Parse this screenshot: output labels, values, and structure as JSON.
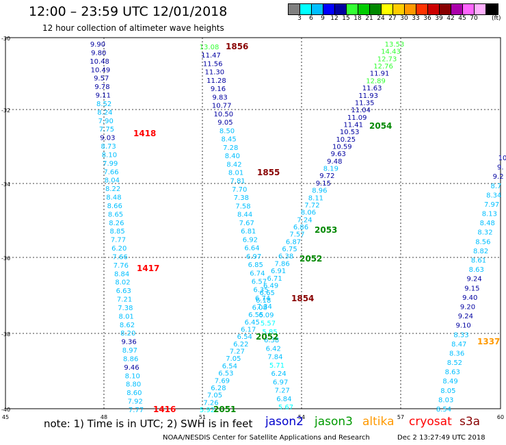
{
  "header": {
    "title": "12:00 – 23:59 UTC 12/01/2018",
    "subtitle": "12 hour collection of altimeter wave heights"
  },
  "legend": {
    "colors": [
      "#808080",
      "#00ffff",
      "#00bfff",
      "#0000ff",
      "#0000a0",
      "#33ff33",
      "#00cc00",
      "#008800",
      "#ffff00",
      "#ffcc00",
      "#ff9900",
      "#ff3300",
      "#cc0000",
      "#880000",
      "#aa00aa",
      "#ff66ff",
      "#ffb0ff",
      "#000000"
    ],
    "labels": [
      "3",
      "6",
      "9",
      "12",
      "15",
      "18",
      "21",
      "24",
      "27",
      "30",
      "33",
      "36",
      "39",
      "42",
      "45",
      "70"
    ],
    "unit": "(ft)"
  },
  "axes": {
    "lat_labels": [
      "-30",
      "-32",
      "-34",
      "-36",
      "-38",
      "-40"
    ],
    "lon_labels": [
      "45",
      "48",
      "51",
      "54",
      "57",
      "60"
    ]
  },
  "tracks": [
    {
      "name": "track-1416",
      "satellite": "jason2",
      "points": [
        {
          "v": "9.90",
          "c": "#0000a0"
        },
        {
          "v": "9.80",
          "c": "#0000a0"
        },
        {
          "v": "10.48",
          "c": "#0000a0"
        },
        {
          "v": "10.49",
          "c": "#0000a0"
        },
        {
          "v": "9.57",
          "c": "#0000a0"
        },
        {
          "v": "9.78",
          "c": "#0000a0"
        },
        {
          "v": "9.11",
          "c": "#0000a0"
        },
        {
          "v": "8.52",
          "c": "#00bfff"
        },
        {
          "v": "8.24",
          "c": "#00bfff"
        },
        {
          "v": "7.90",
          "c": "#00bfff"
        },
        {
          "v": "7.75",
          "c": "#00bfff"
        },
        {
          "v": "9.03",
          "c": "#0000a0"
        },
        {
          "v": "8.73",
          "c": "#00bfff"
        },
        {
          "v": "8.10",
          "c": "#00bfff"
        },
        {
          "v": "7.99",
          "c": "#00bfff"
        },
        {
          "v": "7.66",
          "c": "#00bfff"
        },
        {
          "v": "8.04",
          "c": "#00bfff"
        },
        {
          "v": "8.22",
          "c": "#00bfff"
        },
        {
          "v": "8.48",
          "c": "#00bfff"
        },
        {
          "v": "8.66",
          "c": "#00bfff"
        },
        {
          "v": "8.65",
          "c": "#00bfff"
        },
        {
          "v": "8.26",
          "c": "#00bfff"
        },
        {
          "v": "8.85",
          "c": "#00bfff"
        },
        {
          "v": "7.77",
          "c": "#00bfff"
        },
        {
          "v": "6.20",
          "c": "#00bfff"
        },
        {
          "v": "7.66",
          "c": "#00bfff"
        },
        {
          "v": "7.76",
          "c": "#00bfff"
        },
        {
          "v": "8.84",
          "c": "#00bfff"
        },
        {
          "v": "8.02",
          "c": "#00bfff"
        },
        {
          "v": "6.63",
          "c": "#00bfff"
        },
        {
          "v": "7.21",
          "c": "#00bfff"
        },
        {
          "v": "7.38",
          "c": "#00bfff"
        },
        {
          "v": "8.01",
          "c": "#00bfff"
        },
        {
          "v": "8.62",
          "c": "#00bfff"
        },
        {
          "v": "8.20",
          "c": "#00bfff"
        },
        {
          "v": "9.36",
          "c": "#0000a0"
        },
        {
          "v": "8.97",
          "c": "#00bfff"
        },
        {
          "v": "8.86",
          "c": "#00bfff"
        },
        {
          "v": "9.46",
          "c": "#0000a0"
        },
        {
          "v": "8.10",
          "c": "#00bfff"
        },
        {
          "v": "8.80",
          "c": "#00bfff"
        },
        {
          "v": "8.60",
          "c": "#00bfff"
        },
        {
          "v": "7.92",
          "c": "#00bfff"
        },
        {
          "v": "7.77",
          "c": "#00bfff"
        }
      ],
      "time_labels": [
        {
          "text": "1418",
          "color": "#ff0000"
        },
        {
          "text": "1417",
          "color": "#ff0000"
        },
        {
          "text": "1416",
          "color": "#ff0000"
        }
      ]
    },
    {
      "name": "track-1856",
      "satellite": "s3a",
      "points": [
        {
          "v": "13.08",
          "c": "#33ff33"
        },
        {
          "v": "11.47",
          "c": "#0000a0"
        },
        {
          "v": "11.56",
          "c": "#0000a0"
        },
        {
          "v": "11.30",
          "c": "#0000a0"
        },
        {
          "v": "11.28",
          "c": "#0000a0"
        },
        {
          "v": "9.16",
          "c": "#0000a0"
        },
        {
          "v": "9.83",
          "c": "#0000a0"
        },
        {
          "v": "10.77",
          "c": "#0000a0"
        },
        {
          "v": "10.50",
          "c": "#0000a0"
        },
        {
          "v": "9.05",
          "c": "#0000a0"
        },
        {
          "v": "8.50",
          "c": "#00bfff"
        },
        {
          "v": "8.45",
          "c": "#00bfff"
        },
        {
          "v": "7.28",
          "c": "#00bfff"
        },
        {
          "v": "8.40",
          "c": "#00bfff"
        },
        {
          "v": "8.42",
          "c": "#00bfff"
        },
        {
          "v": "8.01",
          "c": "#00bfff"
        },
        {
          "v": "7.81",
          "c": "#00bfff"
        },
        {
          "v": "7.70",
          "c": "#00bfff"
        },
        {
          "v": "7.38",
          "c": "#00bfff"
        },
        {
          "v": "7.58",
          "c": "#00bfff"
        },
        {
          "v": "8.44",
          "c": "#00bfff"
        },
        {
          "v": "7.67",
          "c": "#00bfff"
        },
        {
          "v": "6.81",
          "c": "#00bfff"
        },
        {
          "v": "6.92",
          "c": "#00bfff"
        },
        {
          "v": "6.64",
          "c": "#00bfff"
        },
        {
          "v": "6.97",
          "c": "#00bfff"
        },
        {
          "v": "6.85",
          "c": "#00bfff"
        },
        {
          "v": "6.74",
          "c": "#00bfff"
        },
        {
          "v": "6.57",
          "c": "#00bfff"
        },
        {
          "v": "6.35",
          "c": "#00bfff"
        },
        {
          "v": "6.74",
          "c": "#00bfff"
        },
        {
          "v": "7.34",
          "c": "#00bfff"
        },
        {
          "v": "6.09",
          "c": "#00bfff"
        },
        {
          "v": "5.57",
          "c": "#00ffff"
        },
        {
          "v": "5.85",
          "c": "#00ffff"
        },
        {
          "v": "6.38",
          "c": "#00bfff"
        },
        {
          "v": "6.42",
          "c": "#00bfff"
        },
        {
          "v": "7.84",
          "c": "#00bfff"
        },
        {
          "v": "5.71",
          "c": "#00ffff"
        },
        {
          "v": "6.24",
          "c": "#00bfff"
        },
        {
          "v": "6.97",
          "c": "#00bfff"
        },
        {
          "v": "7.27",
          "c": "#00bfff"
        },
        {
          "v": "6.84",
          "c": "#00bfff"
        },
        {
          "v": "5.67",
          "c": "#00ffff"
        }
      ],
      "time_labels": [
        {
          "text": "1856",
          "color": "#880000"
        },
        {
          "text": "1855",
          "color": "#880000"
        },
        {
          "text": "1854",
          "color": "#880000"
        }
      ]
    },
    {
      "name": "track-2054",
      "satellite": "jason3",
      "points": [
        {
          "v": "13.53",
          "c": "#33ff33"
        },
        {
          "v": "14.43",
          "c": "#33ff33"
        },
        {
          "v": "12.73",
          "c": "#33ff33"
        },
        {
          "v": "12.76",
          "c": "#33ff33"
        },
        {
          "v": "11.91",
          "c": "#0000a0"
        },
        {
          "v": "12.89",
          "c": "#33ff33"
        },
        {
          "v": "11.63",
          "c": "#0000a0"
        },
        {
          "v": "11.93",
          "c": "#0000a0"
        },
        {
          "v": "11.35",
          "c": "#0000a0"
        },
        {
          "v": "11.04",
          "c": "#0000a0"
        },
        {
          "v": "11.09",
          "c": "#0000a0"
        },
        {
          "v": "11.41",
          "c": "#0000a0"
        },
        {
          "v": "10.53",
          "c": "#0000a0"
        },
        {
          "v": "10.25",
          "c": "#0000a0"
        },
        {
          "v": "10.59",
          "c": "#0000a0"
        },
        {
          "v": "9.63",
          "c": "#0000a0"
        },
        {
          "v": "9.48",
          "c": "#0000a0"
        },
        {
          "v": "8.19",
          "c": "#00bfff"
        },
        {
          "v": "9.72",
          "c": "#0000a0"
        },
        {
          "v": "9.15",
          "c": "#0000a0"
        },
        {
          "v": "8.96",
          "c": "#00bfff"
        },
        {
          "v": "8.11",
          "c": "#00bfff"
        },
        {
          "v": "7.72",
          "c": "#00bfff"
        },
        {
          "v": "8.06",
          "c": "#00bfff"
        },
        {
          "v": "7.24",
          "c": "#00bfff"
        },
        {
          "v": "6.86",
          "c": "#00bfff"
        },
        {
          "v": "7.57",
          "c": "#00bfff"
        },
        {
          "v": "6.87",
          "c": "#00bfff"
        },
        {
          "v": "6.75",
          "c": "#00bfff"
        },
        {
          "v": "6.38",
          "c": "#00bfff"
        },
        {
          "v": "7.86",
          "c": "#00bfff"
        },
        {
          "v": "6.91",
          "c": "#00bfff"
        },
        {
          "v": "6.71",
          "c": "#00bfff"
        },
        {
          "v": "6.49",
          "c": "#00bfff"
        },
        {
          "v": "6.65",
          "c": "#00bfff"
        },
        {
          "v": "6.18",
          "c": "#00bfff"
        },
        {
          "v": "6.08",
          "c": "#00bfff"
        },
        {
          "v": "6.55",
          "c": "#00bfff"
        },
        {
          "v": "6.45",
          "c": "#00bfff"
        },
        {
          "v": "6.17",
          "c": "#00bfff"
        },
        {
          "v": "6.54",
          "c": "#00bfff"
        },
        {
          "v": "6.22",
          "c": "#00bfff"
        },
        {
          "v": "7.27",
          "c": "#00bfff"
        },
        {
          "v": "7.05",
          "c": "#00bfff"
        },
        {
          "v": "6.54",
          "c": "#00bfff"
        },
        {
          "v": "6.53",
          "c": "#00bfff"
        },
        {
          "v": "7.69",
          "c": "#00bfff"
        },
        {
          "v": "6.28",
          "c": "#00bfff"
        },
        {
          "v": "7.05",
          "c": "#00bfff"
        },
        {
          "v": "7.26",
          "c": "#00bfff"
        },
        {
          "v": "5.92",
          "c": "#00ffff"
        }
      ],
      "time_labels": [
        {
          "text": "2054",
          "color": "#008800"
        },
        {
          "text": "2053",
          "color": "#008800"
        },
        {
          "text": "2052",
          "color": "#008800"
        },
        {
          "text": "2052",
          "color": "#008800"
        },
        {
          "text": "2051",
          "color": "#008800"
        }
      ]
    },
    {
      "name": "track-1337",
      "satellite": "altika",
      "points": [
        {
          "v": "10",
          "c": "#0000a0"
        },
        {
          "v": "9.",
          "c": "#0000a0"
        },
        {
          "v": "9.2",
          "c": "#0000a0"
        },
        {
          "v": "8.7",
          "c": "#00bfff"
        },
        {
          "v": "8.34",
          "c": "#00bfff"
        },
        {
          "v": "7.97",
          "c": "#00bfff"
        },
        {
          "v": "8.13",
          "c": "#00bfff"
        },
        {
          "v": "8.48",
          "c": "#00bfff"
        },
        {
          "v": "8.32",
          "c": "#00bfff"
        },
        {
          "v": "8.56",
          "c": "#00bfff"
        },
        {
          "v": "8.82",
          "c": "#00bfff"
        },
        {
          "v": "8.61",
          "c": "#00bfff"
        },
        {
          "v": "8.63",
          "c": "#00bfff"
        },
        {
          "v": "9.24",
          "c": "#0000a0"
        },
        {
          "v": "9.15",
          "c": "#0000a0"
        },
        {
          "v": "9.40",
          "c": "#0000a0"
        },
        {
          "v": "9.20",
          "c": "#0000a0"
        },
        {
          "v": "9.24",
          "c": "#0000a0"
        },
        {
          "v": "9.10",
          "c": "#0000a0"
        },
        {
          "v": "8.33",
          "c": "#00bfff"
        },
        {
          "v": "8.47",
          "c": "#00bfff"
        },
        {
          "v": "8.36",
          "c": "#00bfff"
        },
        {
          "v": "8.52",
          "c": "#00bfff"
        },
        {
          "v": "8.63",
          "c": "#00bfff"
        },
        {
          "v": "8.49",
          "c": "#00bfff"
        },
        {
          "v": "8.05",
          "c": "#00bfff"
        },
        {
          "v": "8.03",
          "c": "#00bfff"
        },
        {
          "v": "8.54",
          "c": "#00bfff"
        }
      ],
      "time_labels": [
        {
          "text": "1337",
          "color": "#ff9900"
        }
      ]
    }
  ],
  "note": "note: 1) Time is in UTC; 2) SWH is in feet",
  "satellites": [
    {
      "label": "jason2",
      "color": "#0000cc"
    },
    {
      "label": "jason3",
      "color": "#009900"
    },
    {
      "label": "altika",
      "color": "#ff9900"
    },
    {
      "label": "cryosat",
      "color": "#ff0000"
    },
    {
      "label": "s3a",
      "color": "#880000"
    }
  ],
  "footer": {
    "left": "NOAA/NESDIS Center for Satellite Applications and Research",
    "right": "Dec  2 13:27:49 UTC 2018"
  }
}
